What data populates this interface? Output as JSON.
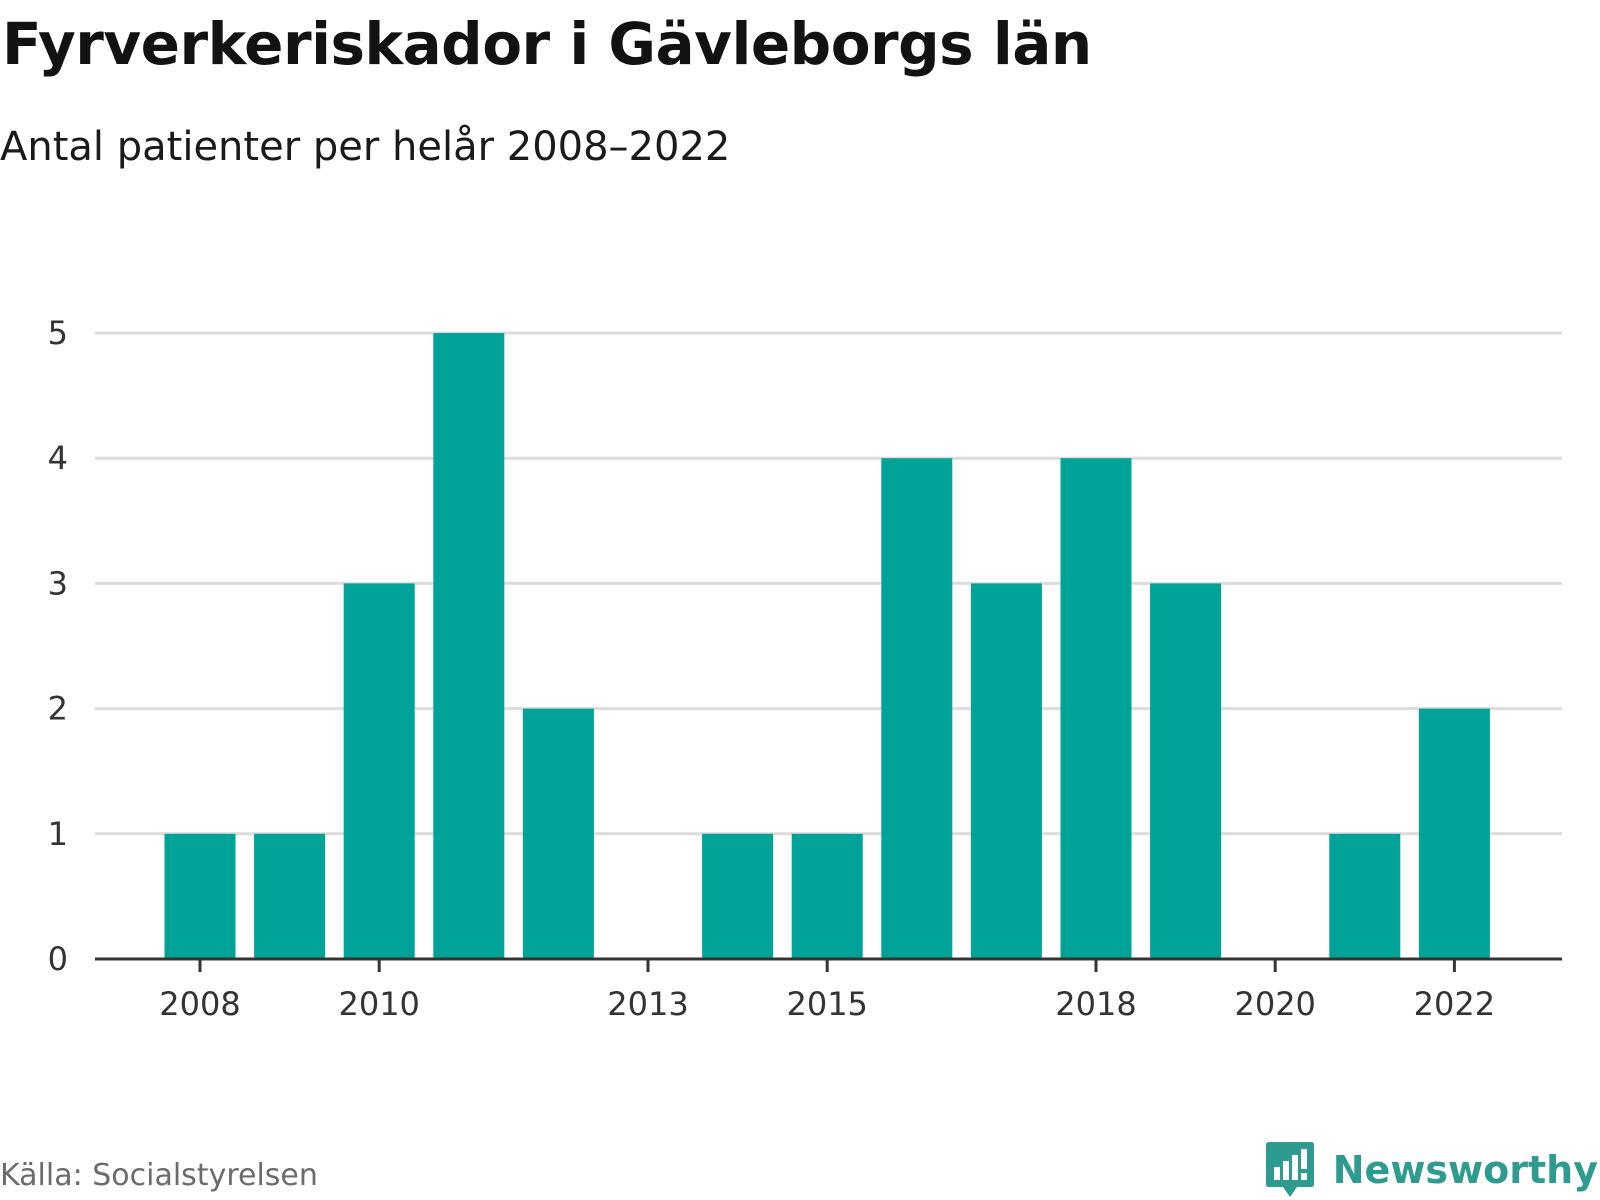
{
  "header": {
    "title": "Fyrverkeriskador i Gävleborgs län",
    "subtitle": "Antal patienter per helår 2008–2022"
  },
  "footer": {
    "source": "Källa: Socialstyrelsen",
    "brand": "Newsworthy"
  },
  "colors": {
    "bar": "#00a398",
    "brand": "#2d9b8f"
  },
  "chart_data": {
    "type": "bar",
    "title": "Fyrverkeriskador i Gävleborgs län",
    "subtitle": "Antal patienter per helår 2008–2022",
    "xlabel": "",
    "ylabel": "",
    "categories": [
      2008,
      2009,
      2010,
      2011,
      2012,
      2013,
      2014,
      2015,
      2016,
      2017,
      2018,
      2019,
      2020,
      2021,
      2022
    ],
    "values": [
      1,
      1,
      3,
      5,
      2,
      0,
      1,
      1,
      4,
      3,
      4,
      3,
      0,
      1,
      2
    ],
    "x_tick_labels": [
      "2008",
      "2010",
      "2013",
      "2015",
      "2018",
      "2020",
      "2022"
    ],
    "y_ticks": [
      0,
      1,
      2,
      3,
      4,
      5
    ],
    "ylim": [
      0,
      5
    ],
    "grid": true,
    "legend": "none"
  }
}
